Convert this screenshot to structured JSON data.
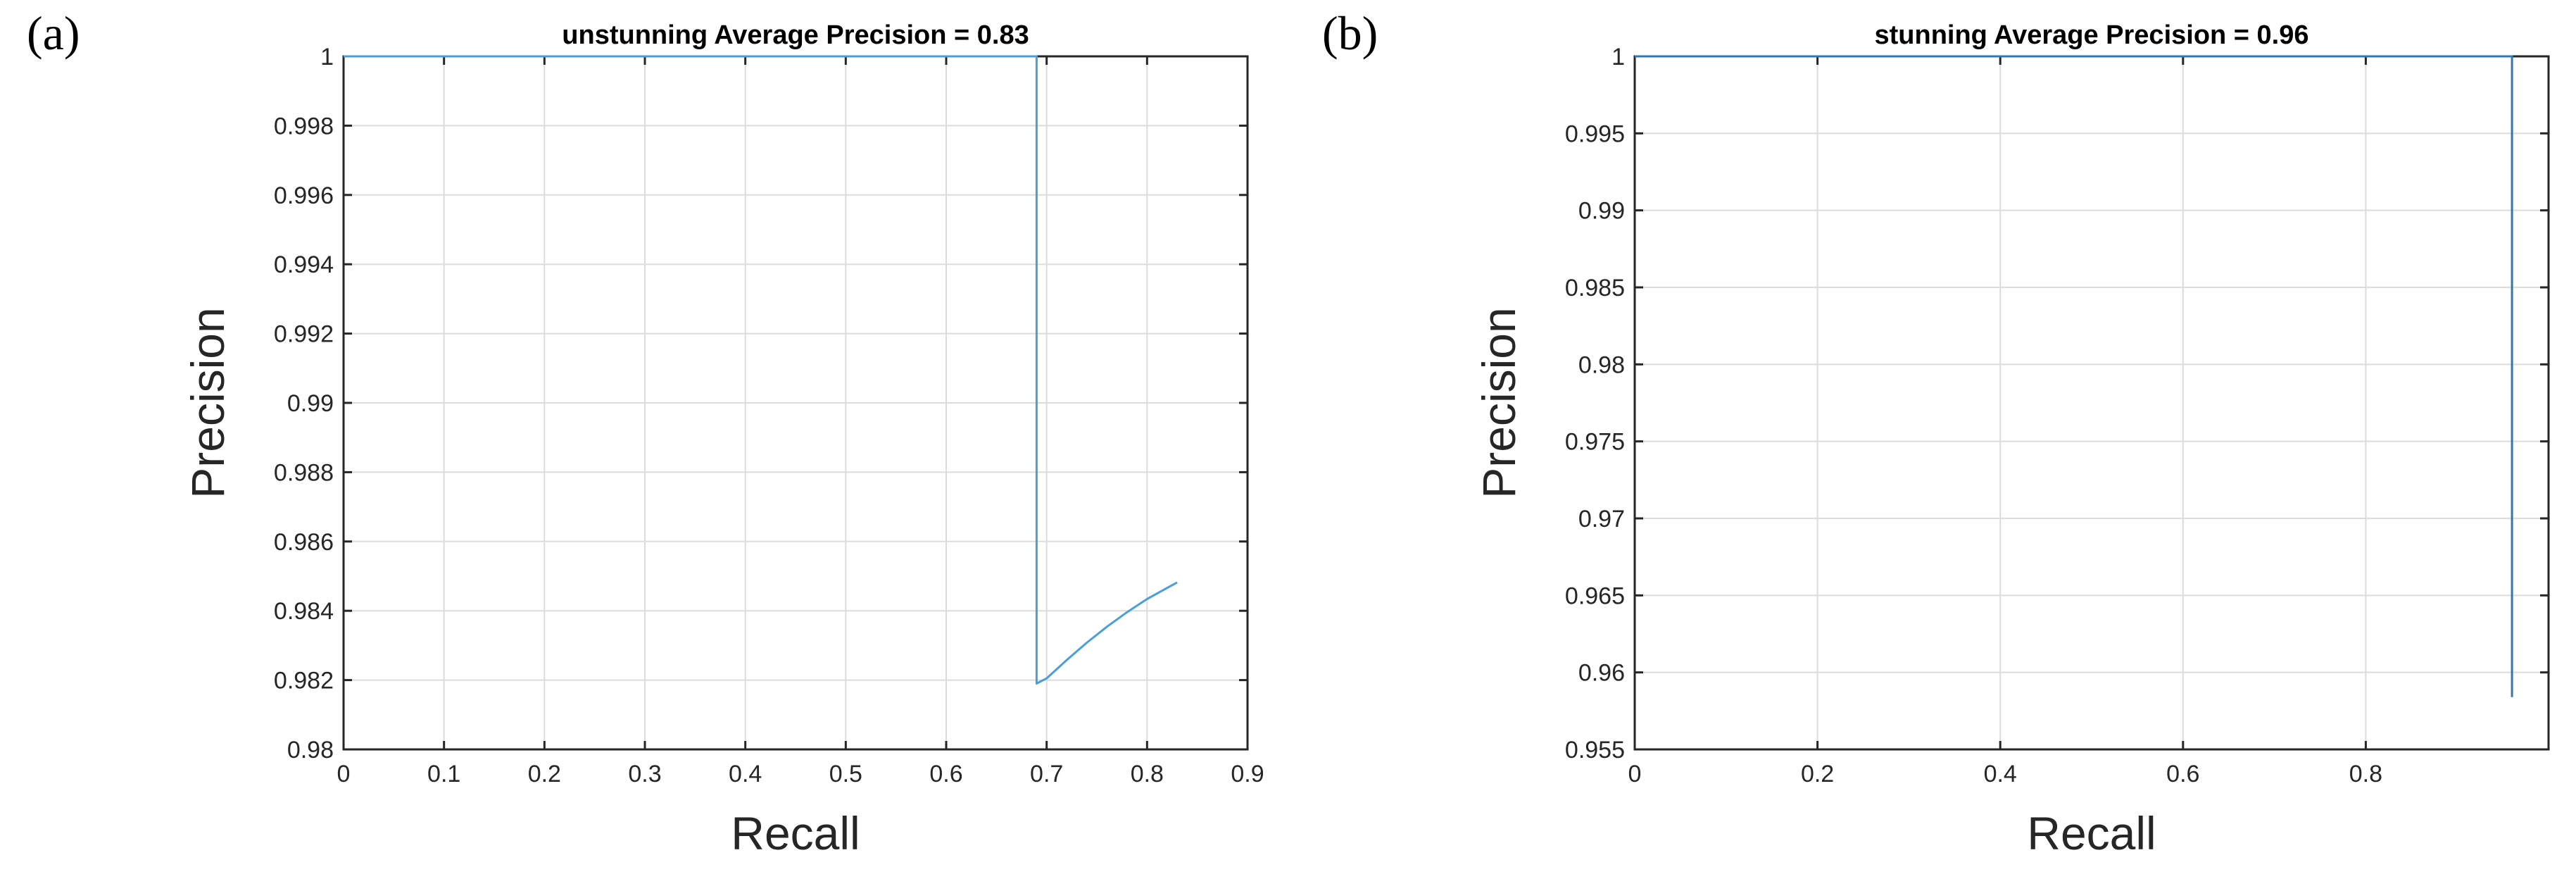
{
  "chart_data": [
    {
      "panel_label": "(a)",
      "type": "line",
      "title": "unstunning Average Precision = 0.83",
      "xlabel": "Recall",
      "ylabel": "Precision",
      "xlim": [
        0,
        0.9
      ],
      "ylim": [
        0.98,
        1
      ],
      "xticks": [
        0,
        0.1,
        0.2,
        0.3,
        0.4,
        0.5,
        0.6,
        0.7,
        0.8,
        0.9
      ],
      "xtick_labels": [
        "0",
        "0.1",
        "0.2",
        "0.3",
        "0.4",
        "0.5",
        "0.6",
        "0.7",
        "0.8",
        "0.9"
      ],
      "yticks": [
        0.98,
        0.982,
        0.984,
        0.986,
        0.988,
        0.99,
        0.992,
        0.994,
        0.996,
        0.998,
        1
      ],
      "ytick_labels": [
        "0.98",
        "0.982",
        "0.984",
        "0.986",
        "0.988",
        "0.99",
        "0.992",
        "0.994",
        "0.996",
        "0.998",
        "1"
      ],
      "grid": true,
      "color": "#4a9fd8",
      "series": [
        {
          "x": [
            0,
            0.69,
            0.69,
            0.7,
            0.72,
            0.74,
            0.76,
            0.78,
            0.8,
            0.82,
            0.83
          ],
          "y": [
            1,
            1,
            0.9819,
            0.98205,
            0.98258,
            0.98308,
            0.98354,
            0.98396,
            0.98434,
            0.98466,
            0.98482
          ]
        }
      ]
    },
    {
      "panel_label": "(b)",
      "type": "line",
      "title": "stunning Average Precision = 0.96",
      "xlabel": "Recall",
      "ylabel": "Precision",
      "xlim": [
        0,
        1
      ],
      "ylim": [
        0.955,
        1
      ],
      "xticks": [
        0,
        0.2,
        0.4,
        0.6,
        0.8
      ],
      "xtick_labels": [
        "0",
        "0.2",
        "0.4",
        "0.6",
        "0.8"
      ],
      "yticks": [
        0.955,
        0.96,
        0.965,
        0.97,
        0.975,
        0.98,
        0.985,
        0.99,
        0.995,
        1
      ],
      "ytick_labels": [
        "0.955",
        "0.96",
        "0.965",
        "0.97",
        "0.975",
        "0.98",
        "0.985",
        "0.99",
        "0.995",
        "1"
      ],
      "grid": true,
      "color": "#2f78b5",
      "series": [
        {
          "x": [
            0,
            0.96,
            0.96
          ],
          "y": [
            1,
            1,
            0.9584
          ]
        }
      ]
    }
  ]
}
